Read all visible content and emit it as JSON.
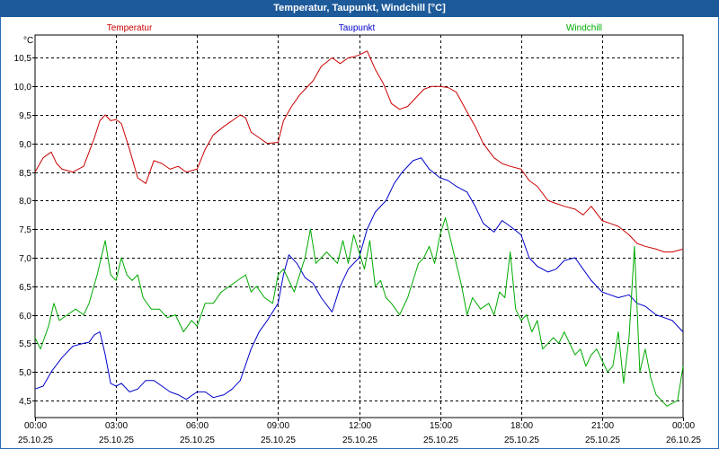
{
  "window": {
    "title": "Temperatur, Taupunkt, Windchill [°C]"
  },
  "chart_data": {
    "type": "line",
    "title": "Temperatur, Taupunkt, Windchill [°C]",
    "ylabel": "°C",
    "ylim": [
      4.2,
      10.9
    ],
    "grid": true,
    "legend_position": "top",
    "yticks": [
      4.5,
      5.0,
      5.5,
      6.0,
      6.5,
      7.0,
      7.5,
      8.0,
      8.5,
      9.0,
      9.5,
      10.0,
      10.5
    ],
    "ytick_labels": [
      "4,5",
      "5,0",
      "5,5",
      "6,0",
      "6,5",
      "7,0",
      "7,5",
      "8,0",
      "8,5",
      "9,0",
      "9,5",
      "10,0",
      "10,5"
    ],
    "xlim": [
      0,
      24
    ],
    "xticks": [
      {
        "hour": 0,
        "time": "00:00",
        "date": "25.10.25"
      },
      {
        "hour": 3,
        "time": "03:00",
        "date": "25.10.25"
      },
      {
        "hour": 6,
        "time": "06:00",
        "date": "25.10.25"
      },
      {
        "hour": 9,
        "time": "09:00",
        "date": "25.10.25"
      },
      {
        "hour": 12,
        "time": "12:00",
        "date": "25.10.25"
      },
      {
        "hour": 15,
        "time": "15:00",
        "date": "25.10.25"
      },
      {
        "hour": 18,
        "time": "18:00",
        "date": "25.10.25"
      },
      {
        "hour": 21,
        "time": "21:00",
        "date": "25.10.25"
      },
      {
        "hour": 24,
        "time": "00:00",
        "date": "26.10.25"
      }
    ],
    "series": [
      {
        "name": "Temperatur",
        "color": "#cc0000",
        "x": [
          0,
          0.3,
          0.6,
          0.8,
          1.0,
          1.4,
          1.8,
          2.2,
          2.4,
          2.6,
          2.8,
          3.0,
          3.2,
          3.5,
          3.8,
          4.1,
          4.4,
          4.7,
          5.0,
          5.3,
          5.6,
          6.0,
          6.3,
          6.6,
          7.0,
          7.3,
          7.6,
          7.8,
          8.0,
          8.3,
          8.6,
          9.0,
          9.2,
          9.5,
          9.8,
          10.0,
          10.3,
          10.6,
          11.0,
          11.3,
          11.6,
          11.8,
          12.0,
          12.3,
          12.6,
          12.9,
          13.2,
          13.5,
          13.8,
          14.1,
          14.4,
          14.7,
          15.0,
          15.3,
          15.6,
          16.0,
          16.3,
          16.6,
          17.0,
          17.3,
          17.6,
          18.0,
          18.3,
          18.6,
          19.0,
          19.3,
          19.6,
          20.0,
          20.3,
          20.6,
          21.0,
          21.3,
          21.6,
          22.0,
          22.3,
          22.6,
          23.0,
          23.3,
          23.6,
          24.0
        ],
        "values": [
          8.5,
          8.75,
          8.85,
          8.65,
          8.55,
          8.5,
          8.6,
          9.1,
          9.4,
          9.5,
          9.4,
          9.42,
          9.35,
          8.9,
          8.4,
          8.3,
          8.7,
          8.65,
          8.55,
          8.6,
          8.5,
          8.55,
          8.9,
          9.15,
          9.3,
          9.4,
          9.5,
          9.45,
          9.2,
          9.1,
          9.0,
          9.02,
          9.4,
          9.65,
          9.85,
          9.95,
          10.1,
          10.35,
          10.5,
          10.4,
          10.5,
          10.52,
          10.55,
          10.62,
          10.3,
          10.05,
          9.7,
          9.6,
          9.65,
          9.8,
          9.95,
          10.0,
          10.0,
          9.98,
          9.9,
          9.55,
          9.3,
          9.0,
          8.75,
          8.65,
          8.6,
          8.55,
          8.35,
          8.25,
          8.0,
          7.95,
          7.9,
          7.85,
          7.75,
          7.9,
          7.65,
          7.6,
          7.55,
          7.4,
          7.25,
          7.2,
          7.15,
          7.1,
          7.1,
          7.15
        ]
      },
      {
        "name": "Taupunkt",
        "color": "#0000cc",
        "x": [
          0,
          0.3,
          0.6,
          1.0,
          1.4,
          1.8,
          2.0,
          2.2,
          2.4,
          2.6,
          2.8,
          3.0,
          3.2,
          3.5,
          3.8,
          4.1,
          4.4,
          4.7,
          5.0,
          5.3,
          5.6,
          6.0,
          6.3,
          6.6,
          7.0,
          7.3,
          7.6,
          8.0,
          8.3,
          8.6,
          9.0,
          9.2,
          9.4,
          9.7,
          10.0,
          10.3,
          10.6,
          11.0,
          11.3,
          11.6,
          12.0,
          12.3,
          12.6,
          13.0,
          13.3,
          13.6,
          14.0,
          14.3,
          14.6,
          15.0,
          15.3,
          15.6,
          16.0,
          16.3,
          16.6,
          17.0,
          17.3,
          17.6,
          18.0,
          18.3,
          18.6,
          19.0,
          19.3,
          19.6,
          20.0,
          20.3,
          20.6,
          21.0,
          21.3,
          21.6,
          22.0,
          22.3,
          22.6,
          23.0,
          23.3,
          23.6,
          24.0
        ],
        "values": [
          4.7,
          4.75,
          5.0,
          5.25,
          5.45,
          5.5,
          5.52,
          5.65,
          5.7,
          5.3,
          4.8,
          4.75,
          4.8,
          4.65,
          4.7,
          4.85,
          4.85,
          4.75,
          4.65,
          4.6,
          4.52,
          4.65,
          4.65,
          4.55,
          4.6,
          4.7,
          4.85,
          5.4,
          5.7,
          5.9,
          6.2,
          6.7,
          7.05,
          6.9,
          6.65,
          6.55,
          6.3,
          6.05,
          6.5,
          6.8,
          7.0,
          7.5,
          7.8,
          8.0,
          8.3,
          8.5,
          8.7,
          8.75,
          8.55,
          8.4,
          8.35,
          8.25,
          8.15,
          7.9,
          7.6,
          7.45,
          7.65,
          7.55,
          7.4,
          7.0,
          6.85,
          6.75,
          6.8,
          6.95,
          7.0,
          6.8,
          6.6,
          6.4,
          6.35,
          6.3,
          6.35,
          6.2,
          6.15,
          6.0,
          5.95,
          5.9,
          5.7
        ]
      },
      {
        "name": "Windchill",
        "color": "#00aa00",
        "x": [
          0,
          0.2,
          0.5,
          0.7,
          0.9,
          1.2,
          1.5,
          1.8,
          2.0,
          2.3,
          2.6,
          2.8,
          3.0,
          3.2,
          3.4,
          3.6,
          3.8,
          4.0,
          4.3,
          4.6,
          4.9,
          5.2,
          5.5,
          5.8,
          6.0,
          6.3,
          6.6,
          6.9,
          7.2,
          7.5,
          7.8,
          8.0,
          8.2,
          8.5,
          8.8,
          9.0,
          9.2,
          9.4,
          9.6,
          9.8,
          10.0,
          10.2,
          10.4,
          10.6,
          10.8,
          11.0,
          11.2,
          11.4,
          11.6,
          11.8,
          12.0,
          12.2,
          12.4,
          12.6,
          12.8,
          13.0,
          13.2,
          13.5,
          13.8,
          14.0,
          14.2,
          14.4,
          14.6,
          14.8,
          15.0,
          15.2,
          15.5,
          15.8,
          16.0,
          16.2,
          16.5,
          16.8,
          17.0,
          17.2,
          17.4,
          17.6,
          17.8,
          18.0,
          18.2,
          18.4,
          18.6,
          18.8,
          19.0,
          19.2,
          19.4,
          19.6,
          19.8,
          20.0,
          20.2,
          20.4,
          20.6,
          20.8,
          21.0,
          21.2,
          21.4,
          21.6,
          21.8,
          22.0,
          22.2,
          22.4,
          22.6,
          22.8,
          23.0,
          23.2,
          23.4,
          23.6,
          23.8,
          24.0
        ],
        "values": [
          5.6,
          5.4,
          5.8,
          6.2,
          5.9,
          6.0,
          6.1,
          6.0,
          6.2,
          6.7,
          7.3,
          6.7,
          6.6,
          7.0,
          6.7,
          6.6,
          6.7,
          6.3,
          6.1,
          6.1,
          5.95,
          6.0,
          5.7,
          5.9,
          5.8,
          6.2,
          6.2,
          6.4,
          6.5,
          6.6,
          6.7,
          6.4,
          6.5,
          6.3,
          6.2,
          6.7,
          6.8,
          6.6,
          6.4,
          6.7,
          7.0,
          7.5,
          6.9,
          7.0,
          7.1,
          7.0,
          6.9,
          7.3,
          6.9,
          7.4,
          7.1,
          6.8,
          7.3,
          6.5,
          6.6,
          6.3,
          6.2,
          6.0,
          6.3,
          6.6,
          6.9,
          7.0,
          7.2,
          6.9,
          7.4,
          7.7,
          7.1,
          6.5,
          6.0,
          6.3,
          6.1,
          6.2,
          6.0,
          6.4,
          6.3,
          7.1,
          6.1,
          5.9,
          6.0,
          5.7,
          5.9,
          5.4,
          5.5,
          5.6,
          5.5,
          5.7,
          5.5,
          5.3,
          5.4,
          5.1,
          5.3,
          5.4,
          5.2,
          5.0,
          5.1,
          5.7,
          4.8,
          5.6,
          7.2,
          5.0,
          5.4,
          4.9,
          4.6,
          4.5,
          4.4,
          4.45,
          4.5,
          5.1
        ]
      }
    ]
  }
}
